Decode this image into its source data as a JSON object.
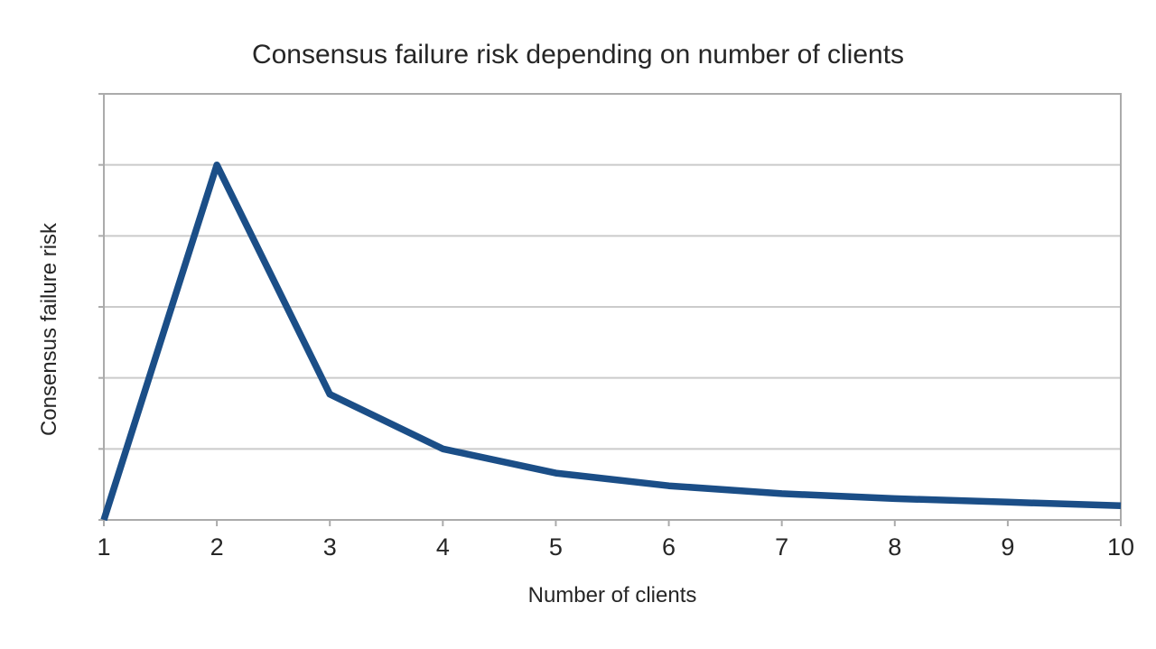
{
  "page": {
    "background": "#ffffff"
  },
  "chart_data": {
    "type": "line",
    "title": "Consensus failure risk depending on number of clients",
    "xlabel": "Number of clients",
    "ylabel": "Consensus failure risk",
    "x": [
      1,
      2,
      3,
      4,
      5,
      6,
      7,
      8,
      9,
      10
    ],
    "x_tick_labels": [
      "1",
      "2",
      "3",
      "4",
      "5",
      "6",
      "7",
      "8",
      "9",
      "10"
    ],
    "y_tick_labels": [],
    "series": [
      {
        "name": "Consensus failure risk",
        "values_gridline_units": [
          0,
          5.0,
          1.77,
          1.0,
          0.66,
          0.48,
          0.37,
          0.3,
          0.25,
          0.2
        ]
      }
    ],
    "xlim": [
      1,
      10
    ],
    "ylim_gridline_units": [
      0,
      6
    ],
    "grid": "horizontal gridlines only; 6 equal unlabeled intervals",
    "legend": "none",
    "note": "y-axis has no numeric tick labels; series values estimated in gridline units (1 unit = one horizontal gridline interval). Risk is 0 at 1 client, peaks at 2 clients exactly on the 5th gridline, then decays toward 0 by 10 clients.",
    "colors": {
      "series_line": "#1b4e87",
      "frame": "#ababab",
      "gridline": "#cbcbcb",
      "tick": "#ababab",
      "text": "#262626",
      "background": "#ffffff"
    }
  }
}
